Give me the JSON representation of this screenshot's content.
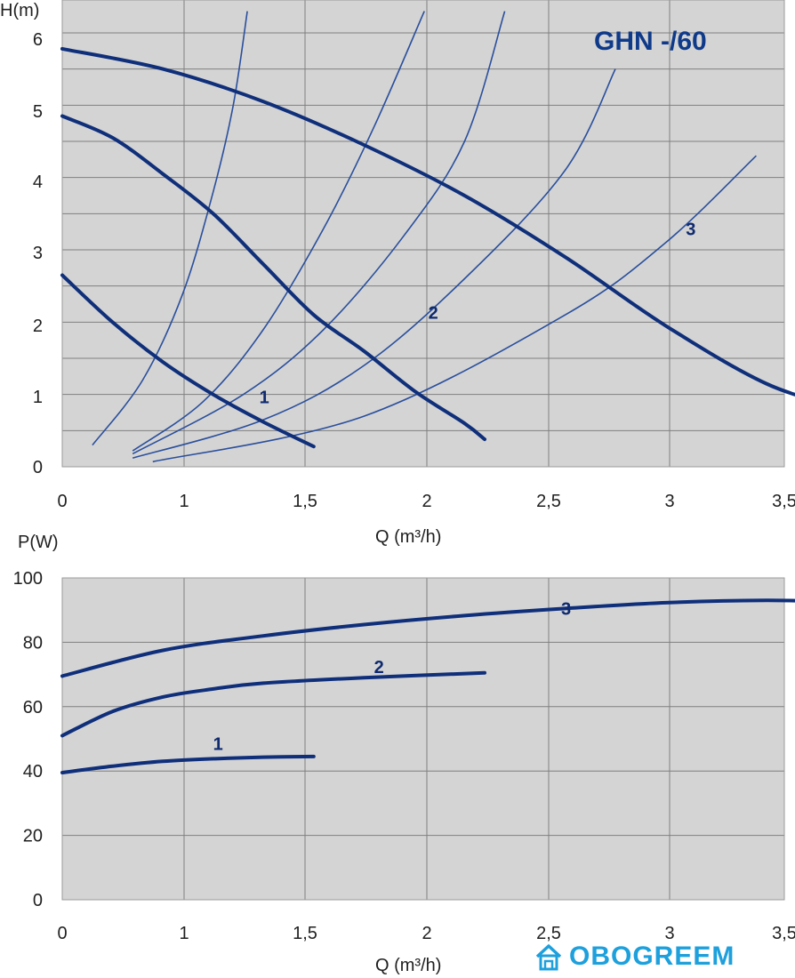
{
  "chart_data": [
    {
      "type": "line",
      "title": "GHN -/60",
      "ylabel": "H(m)",
      "xlabel": "Q (m³/h)",
      "xlim": [
        0,
        3.5
      ],
      "ylim": [
        0,
        6.3
      ],
      "x_ticks": [
        "0",
        "1",
        "1,5",
        "2",
        "2,5",
        "3",
        "3,5"
      ],
      "y_ticks": [
        "0",
        "1",
        "2",
        "3",
        "4",
        "5",
        "6"
      ],
      "grid": true,
      "series": [
        {
          "name": "1",
          "points": [
            [
              0,
              2.65
            ],
            [
              0.25,
              2.0
            ],
            [
              0.5,
              1.45
            ],
            [
              0.75,
              1.0
            ],
            [
              1.0,
              0.62
            ],
            [
              1.25,
              0.28
            ]
          ]
        },
        {
          "name": "2",
          "points": [
            [
              0,
              4.85
            ],
            [
              0.25,
              4.55
            ],
            [
              0.5,
              4.05
            ],
            [
              0.75,
              3.5
            ],
            [
              1.0,
              2.8
            ],
            [
              1.25,
              2.1
            ],
            [
              1.5,
              1.6
            ],
            [
              1.75,
              1.05
            ],
            [
              2.0,
              0.6
            ],
            [
              2.1,
              0.38
            ]
          ]
        },
        {
          "name": "3",
          "points": [
            [
              0,
              5.78
            ],
            [
              0.5,
              5.5
            ],
            [
              1.0,
              5.05
            ],
            [
              1.5,
              4.45
            ],
            [
              2.0,
              3.75
            ],
            [
              2.5,
              2.9
            ],
            [
              3.0,
              1.95
            ],
            [
              3.5,
              1.15
            ],
            [
              3.9,
              0.8
            ]
          ]
        }
      ],
      "system_curves": [
        [
          [
            0.15,
            0.3
          ],
          [
            0.4,
            1.2
          ],
          [
            0.6,
            2.4
          ],
          [
            0.75,
            3.8
          ],
          [
            0.85,
            5.0
          ],
          [
            0.92,
            6.3
          ]
        ],
        [
          [
            0.35,
            0.22
          ],
          [
            0.7,
            0.9
          ],
          [
            1.0,
            1.9
          ],
          [
            1.3,
            3.3
          ],
          [
            1.55,
            4.7
          ],
          [
            1.8,
            6.3
          ]
        ],
        [
          [
            0.35,
            0.18
          ],
          [
            0.9,
            1.0
          ],
          [
            1.3,
            1.9
          ],
          [
            1.7,
            3.2
          ],
          [
            2.0,
            4.5
          ],
          [
            2.2,
            6.3
          ]
        ],
        [
          [
            0.35,
            0.12
          ],
          [
            1.0,
            0.65
          ],
          [
            1.5,
            1.4
          ],
          [
            2.0,
            2.6
          ],
          [
            2.5,
            4.1
          ],
          [
            2.75,
            5.5
          ]
        ],
        [
          [
            0.45,
            0.07
          ],
          [
            1.5,
            0.7
          ],
          [
            2.5,
            2.1
          ],
          [
            3.0,
            3.1
          ],
          [
            3.45,
            4.3
          ]
        ]
      ]
    },
    {
      "type": "line",
      "title": "",
      "ylabel": "P(W)",
      "xlabel": "Q (m³/h)",
      "xlim": [
        0,
        3.5
      ],
      "ylim": [
        0,
        100
      ],
      "x_ticks": [
        "0",
        "1",
        "1,5",
        "2",
        "2,5",
        "3",
        "3,5"
      ],
      "y_ticks": [
        "0",
        "20",
        "40",
        "60",
        "80",
        "100"
      ],
      "grid": true,
      "series": [
        {
          "name": "1",
          "points": [
            [
              0,
              39.5
            ],
            [
              0.25,
              41.5
            ],
            [
              0.5,
              43.0
            ],
            [
              0.75,
              43.8
            ],
            [
              1.0,
              44.3
            ],
            [
              1.25,
              44.5
            ]
          ]
        },
        {
          "name": "2",
          "points": [
            [
              0,
              51.0
            ],
            [
              0.25,
              58.5
            ],
            [
              0.5,
              63.0
            ],
            [
              0.75,
              65.5
            ],
            [
              1.0,
              67.3
            ],
            [
              1.5,
              69.0
            ],
            [
              2.1,
              70.5
            ]
          ]
        },
        {
          "name": "3",
          "points": [
            [
              0,
              69.5
            ],
            [
              0.5,
              77.5
            ],
            [
              1.0,
              82.0
            ],
            [
              1.5,
              85.5
            ],
            [
              2.0,
              88.3
            ],
            [
              2.5,
              90.5
            ],
            [
              3.0,
              92.3
            ],
            [
              3.5,
              93.0
            ],
            [
              3.9,
              92.5
            ]
          ]
        }
      ]
    }
  ],
  "watermark": {
    "text": "OBOGREEM",
    "color": "#1da0dc"
  },
  "colors": {
    "panel": "#d4d4d4",
    "grid": "#7f7f7f",
    "curve": "#0f2f7a",
    "system": "#2a4f9c"
  }
}
